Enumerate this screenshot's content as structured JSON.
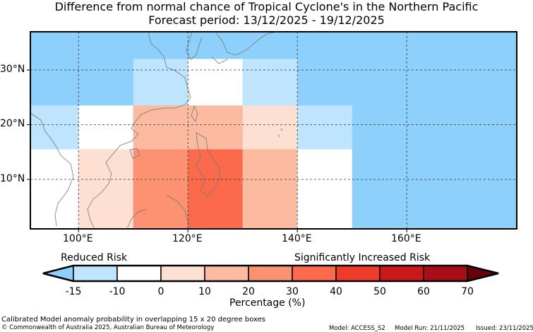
{
  "title": "Difference from normal chance of Tropical Cyclone's in the Northern Pacific",
  "subtitle": "Forecast period: 13/12/2025 - 19/12/2025",
  "map": {
    "lat_labels": [
      "30°N",
      "20°N",
      "10°N"
    ],
    "lon_labels": [
      "100°E",
      "120°E",
      "140°E",
      "160°E"
    ],
    "background_color": "#8ed0fc",
    "cells": [
      {
        "lon": [
          110,
          130
        ],
        "lat": [
          23.5,
          32
        ],
        "value": -12
      },
      {
        "lon": [
          120,
          130
        ],
        "lat": [
          23.5,
          32
        ],
        "value": -5
      },
      {
        "lon": [
          130,
          140
        ],
        "lat": [
          23.5,
          32
        ],
        "value": -12
      },
      {
        "lon": [
          90,
          100
        ],
        "lat": [
          15.5,
          23.5
        ],
        "value": -12
      },
      {
        "lon": [
          100,
          110
        ],
        "lat": [
          15.5,
          23.5
        ],
        "value": -5
      },
      {
        "lon": [
          110,
          130
        ],
        "lat": [
          15.5,
          23.5
        ],
        "value": 15
      },
      {
        "lon": [
          130,
          140
        ],
        "lat": [
          15.5,
          23.5
        ],
        "value": 5
      },
      {
        "lon": [
          140,
          150
        ],
        "lat": [
          15.5,
          23.5
        ],
        "value": -12
      },
      {
        "lon": [
          90,
          100
        ],
        "lat": [
          0,
          15.5
        ],
        "value": -5
      },
      {
        "lon": [
          100,
          110
        ],
        "lat": [
          0,
          15.5
        ],
        "value": 5
      },
      {
        "lon": [
          110,
          120
        ],
        "lat": [
          0,
          15.5
        ],
        "value": 25
      },
      {
        "lon": [
          120,
          130
        ],
        "lat": [
          0,
          15.5
        ],
        "value": 35
      },
      {
        "lon": [
          130,
          140
        ],
        "lat": [
          0,
          15.5
        ],
        "value": 15
      },
      {
        "lon": [
          140,
          150
        ],
        "lat": [
          0,
          15.5
        ],
        "value": -5
      }
    ]
  },
  "colorbar": {
    "reduced_label": "Reduced Risk",
    "increased_label": "Significantly Increased Risk",
    "ticks": [
      "-15",
      "-10",
      "0",
      "10",
      "20",
      "30",
      "40",
      "50",
      "60",
      "70"
    ],
    "colors": [
      "#8ed0fc",
      "#bfe4fd",
      "#ffffff",
      "#fee0d2",
      "#fcbba1",
      "#fc9272",
      "#fb6a4a",
      "#ef3b2c",
      "#cb181d",
      "#a50f15",
      "#67000d"
    ],
    "xlabel": "Percentage (%)"
  },
  "footer": {
    "note": "Calibrated Model anomaly probability in overlapping 15 x 20 degree boxes",
    "copyright": "© Commonwealth of Australia 2025, Australian Bureau of Meteorology",
    "model": "Model: ACCESS_S2",
    "model_run": "Model Run: 21/11/2025",
    "issued": "Issued: 23/11/2025"
  }
}
